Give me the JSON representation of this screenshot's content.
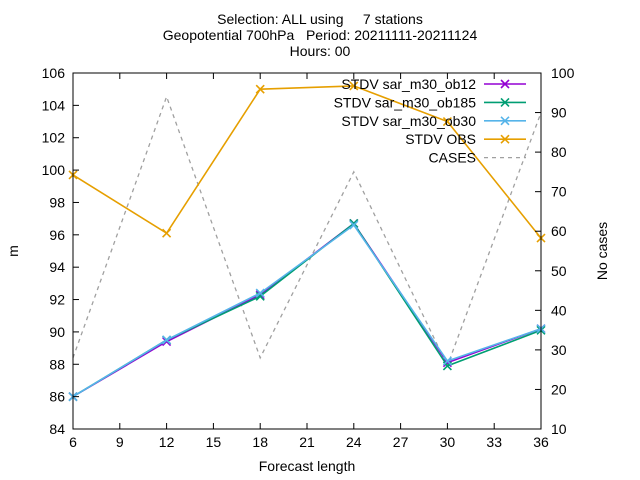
{
  "chart_data": {
    "type": "line",
    "title_lines": [
      "Selection: ALL using     7 stations",
      "Geopotential 700hPa   Period: 20211111-20211124",
      "Hours: 00"
    ],
    "xlabel": "Forecast length",
    "ylabel": "m",
    "y2label": "No cases",
    "x": [
      6,
      12,
      18,
      24,
      30,
      36
    ],
    "xlim": [
      6,
      36
    ],
    "xticks": [
      6,
      9,
      12,
      15,
      18,
      21,
      24,
      27,
      30,
      33,
      36
    ],
    "ylim": [
      84,
      106
    ],
    "yticks": [
      84,
      86,
      88,
      90,
      92,
      94,
      96,
      98,
      100,
      102,
      104,
      106
    ],
    "y2lim": [
      10,
      100
    ],
    "y2ticks": [
      10,
      20,
      30,
      40,
      50,
      60,
      70,
      80,
      90,
      100
    ],
    "grid": false,
    "legend_position": "top-right",
    "series": [
      {
        "name": "STDV sar_m30_ob12",
        "axis": "y",
        "color": "#9400d3",
        "marker": "x",
        "dashed": false,
        "values": [
          86.0,
          89.4,
          92.3,
          96.7,
          88.1,
          90.2
        ]
      },
      {
        "name": "STDV sar_m30_ob185",
        "axis": "y",
        "color": "#009e73",
        "marker": "x",
        "dashed": false,
        "values": [
          86.0,
          89.5,
          92.2,
          96.7,
          87.9,
          90.1
        ]
      },
      {
        "name": "STDV sar_m30_ob30",
        "axis": "y",
        "color": "#56b4e9",
        "marker": "x",
        "dashed": false,
        "values": [
          86.0,
          89.5,
          92.4,
          96.6,
          88.2,
          90.2
        ]
      },
      {
        "name": "STDV OBS",
        "axis": "y",
        "color": "#e69f00",
        "marker": "x",
        "dashed": false,
        "values": [
          99.7,
          96.1,
          105.0,
          105.2,
          103.0,
          95.8
        ]
      },
      {
        "name": "CASES",
        "axis": "y2",
        "color": "#a0a0a0",
        "marker": "none",
        "dashed": true,
        "values": [
          28,
          94,
          28,
          75,
          26,
          90
        ]
      }
    ]
  }
}
